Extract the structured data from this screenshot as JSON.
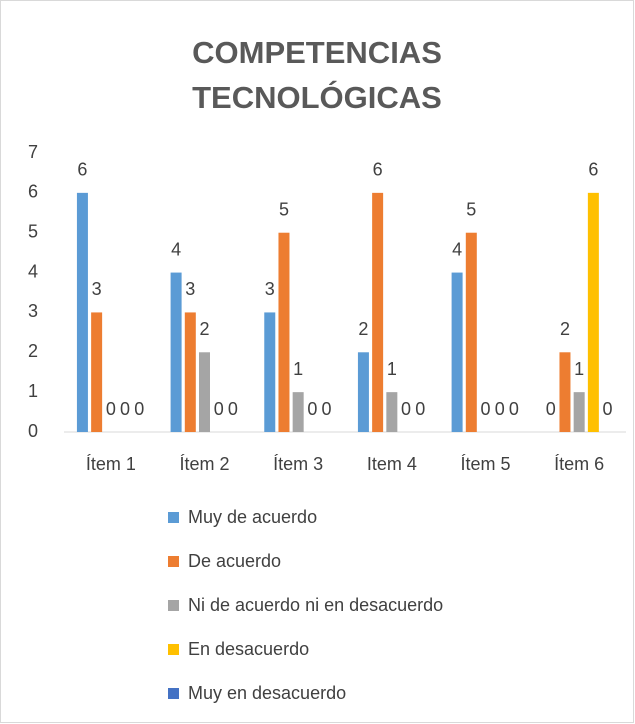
{
  "chart_data": {
    "type": "bar",
    "title": "COMPETENCIAS TECNOLÓGICAS",
    "categories": [
      "Ítem 1",
      "Ítem 2",
      "Ítem 3",
      "Item 4",
      "Ítem 5",
      "Ítem 6"
    ],
    "series": [
      {
        "name": "Muy de acuerdo",
        "color": "#5b9bd5",
        "values": [
          6,
          4,
          3,
          2,
          4,
          0
        ]
      },
      {
        "name": "De acuerdo",
        "color": "#ed7d31",
        "values": [
          3,
          3,
          5,
          6,
          5,
          2
        ]
      },
      {
        "name": "Ni de acuerdo ni en desacuerdo",
        "color": "#a5a5a5",
        "values": [
          0,
          2,
          1,
          1,
          0,
          1
        ]
      },
      {
        "name": "En desacuerdo",
        "color": "#ffc000",
        "values": [
          0,
          0,
          0,
          0,
          0,
          6
        ]
      },
      {
        "name": "Muy en desacuerdo",
        "color": "#4472c4",
        "values": [
          0,
          0,
          0,
          0,
          0,
          0
        ]
      }
    ],
    "ylim": [
      0,
      7
    ],
    "yticks": [
      0,
      1,
      2,
      3,
      4,
      5,
      6,
      7
    ],
    "grid": false,
    "legend": "bottom"
  }
}
